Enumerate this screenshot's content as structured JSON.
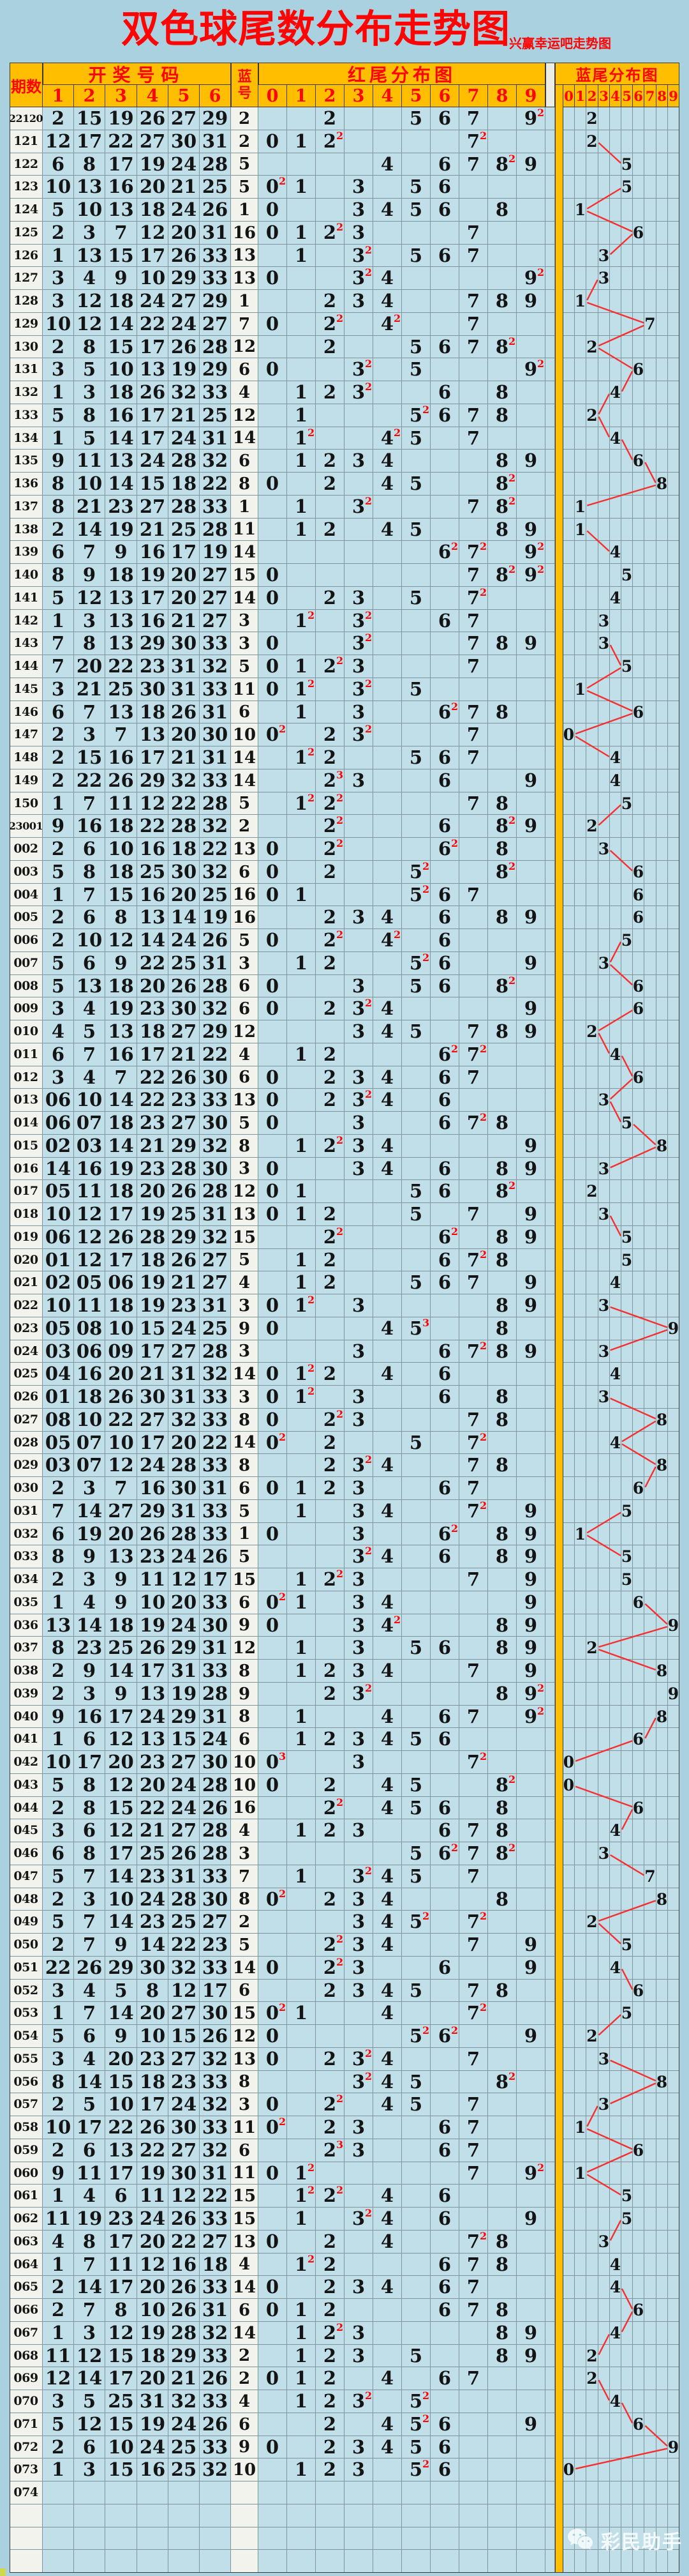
{
  "title": "双色球尾数分布走势图",
  "subtitle": "兴赢幸运吧走势图",
  "watermark": "彩民助手",
  "header": {
    "period": "期数",
    "numbers": "开奖号码",
    "number_cols": [
      "1",
      "2",
      "3",
      "4",
      "5",
      "6"
    ],
    "blue": "蓝号",
    "red_tail": "红尾分布图",
    "red_cols": [
      "0",
      "1",
      "2",
      "3",
      "4",
      "5",
      "6",
      "7",
      "8",
      "9"
    ],
    "blue_tail": "蓝尾分布图",
    "blue_cols": [
      "0",
      "1",
      "2",
      "3",
      "4",
      "5",
      "6",
      "7",
      "8",
      "9"
    ]
  },
  "colors": {
    "page_bg": "#a9d1df",
    "cell_blue": "#c0dfe9",
    "label_white": "#f3f3ed",
    "header_orange": "#ffbe00",
    "title_red": "#fe0404",
    "grid": "#7f949b",
    "trend_line_red": "#f53030",
    "digit_black": "#141414"
  },
  "chart_data": {
    "type": "table",
    "title": "双色球尾数分布走势图",
    "notes": "Red-tail cells show last digit of each of the 6 red numbers with red superscript = occurrence count; blue-tail column shows last digit of blue number; red zigzag line links consecutive blue tails when they differ by 2 or more.",
    "trailing_empty_rows": 3,
    "rows": [
      {
        "p": "22120",
        "n": [
          "2",
          "15",
          "19",
          "26",
          "27",
          "29"
        ],
        "b": "2"
      },
      {
        "p": "121",
        "n": [
          "12",
          "17",
          "22",
          "27",
          "30",
          "31"
        ],
        "b": "2"
      },
      {
        "p": "122",
        "n": [
          "6",
          "8",
          "17",
          "19",
          "24",
          "28"
        ],
        "b": "5"
      },
      {
        "p": "123",
        "n": [
          "10",
          "13",
          "16",
          "20",
          "21",
          "25"
        ],
        "b": "5"
      },
      {
        "p": "124",
        "n": [
          "5",
          "10",
          "13",
          "18",
          "24",
          "26"
        ],
        "b": "1"
      },
      {
        "p": "125",
        "n": [
          "2",
          "3",
          "7",
          "12",
          "20",
          "31"
        ],
        "b": "16"
      },
      {
        "p": "126",
        "n": [
          "1",
          "13",
          "15",
          "17",
          "26",
          "33"
        ],
        "b": "13"
      },
      {
        "p": "127",
        "n": [
          "3",
          "4",
          "9",
          "10",
          "29",
          "33"
        ],
        "b": "13"
      },
      {
        "p": "128",
        "n": [
          "3",
          "12",
          "18",
          "24",
          "27",
          "29"
        ],
        "b": "1"
      },
      {
        "p": "129",
        "n": [
          "10",
          "12",
          "14",
          "22",
          "24",
          "27"
        ],
        "b": "7"
      },
      {
        "p": "130",
        "n": [
          "2",
          "8",
          "15",
          "17",
          "26",
          "28"
        ],
        "b": "12"
      },
      {
        "p": "131",
        "n": [
          "3",
          "5",
          "10",
          "13",
          "19",
          "29"
        ],
        "b": "6"
      },
      {
        "p": "132",
        "n": [
          "1",
          "3",
          "18",
          "26",
          "32",
          "33"
        ],
        "b": "4"
      },
      {
        "p": "133",
        "n": [
          "5",
          "8",
          "16",
          "17",
          "21",
          "25"
        ],
        "b": "12"
      },
      {
        "p": "134",
        "n": [
          "1",
          "5",
          "14",
          "17",
          "24",
          "31"
        ],
        "b": "14"
      },
      {
        "p": "135",
        "n": [
          "9",
          "11",
          "13",
          "24",
          "28",
          "32"
        ],
        "b": "6"
      },
      {
        "p": "136",
        "n": [
          "8",
          "10",
          "14",
          "15",
          "18",
          "22"
        ],
        "b": "8"
      },
      {
        "p": "137",
        "n": [
          "8",
          "21",
          "23",
          "27",
          "28",
          "33"
        ],
        "b": "1"
      },
      {
        "p": "138",
        "n": [
          "2",
          "14",
          "19",
          "21",
          "25",
          "28"
        ],
        "b": "11"
      },
      {
        "p": "139",
        "n": [
          "6",
          "7",
          "9",
          "16",
          "17",
          "19"
        ],
        "b": "14"
      },
      {
        "p": "140",
        "n": [
          "8",
          "9",
          "18",
          "19",
          "20",
          "27"
        ],
        "b": "15"
      },
      {
        "p": "141",
        "n": [
          "5",
          "12",
          "13",
          "17",
          "20",
          "27"
        ],
        "b": "14"
      },
      {
        "p": "142",
        "n": [
          "1",
          "3",
          "13",
          "16",
          "21",
          "27"
        ],
        "b": "3"
      },
      {
        "p": "143",
        "n": [
          "7",
          "8",
          "13",
          "29",
          "30",
          "33"
        ],
        "b": "3"
      },
      {
        "p": "144",
        "n": [
          "7",
          "20",
          "22",
          "23",
          "31",
          "32"
        ],
        "b": "5"
      },
      {
        "p": "145",
        "n": [
          "3",
          "21",
          "25",
          "30",
          "31",
          "33"
        ],
        "b": "11"
      },
      {
        "p": "146",
        "n": [
          "6",
          "7",
          "13",
          "18",
          "26",
          "31"
        ],
        "b": "6"
      },
      {
        "p": "147",
        "n": [
          "2",
          "3",
          "7",
          "13",
          "20",
          "30"
        ],
        "b": "10"
      },
      {
        "p": "148",
        "n": [
          "2",
          "15",
          "16",
          "17",
          "21",
          "31"
        ],
        "b": "14"
      },
      {
        "p": "149",
        "n": [
          "2",
          "22",
          "26",
          "29",
          "32",
          "33"
        ],
        "b": "14"
      },
      {
        "p": "150",
        "n": [
          "1",
          "7",
          "11",
          "12",
          "22",
          "28"
        ],
        "b": "5"
      },
      {
        "p": "23001",
        "n": [
          "9",
          "16",
          "18",
          "22",
          "28",
          "32"
        ],
        "b": "2"
      },
      {
        "p": "002",
        "n": [
          "2",
          "6",
          "10",
          "16",
          "18",
          "22"
        ],
        "b": "13"
      },
      {
        "p": "003",
        "n": [
          "5",
          "8",
          "18",
          "25",
          "30",
          "32"
        ],
        "b": "6"
      },
      {
        "p": "004",
        "n": [
          "1",
          "7",
          "15",
          "16",
          "20",
          "25"
        ],
        "b": "16"
      },
      {
        "p": "005",
        "n": [
          "2",
          "6",
          "8",
          "13",
          "14",
          "19"
        ],
        "b": "16"
      },
      {
        "p": "006",
        "n": [
          "2",
          "10",
          "12",
          "14",
          "24",
          "26"
        ],
        "b": "5"
      },
      {
        "p": "007",
        "n": [
          "5",
          "6",
          "9",
          "22",
          "25",
          "31"
        ],
        "b": "3"
      },
      {
        "p": "008",
        "n": [
          "5",
          "13",
          "18",
          "20",
          "26",
          "28"
        ],
        "b": "6"
      },
      {
        "p": "009",
        "n": [
          "3",
          "4",
          "19",
          "23",
          "30",
          "32"
        ],
        "b": "6"
      },
      {
        "p": "010",
        "n": [
          "4",
          "5",
          "13",
          "18",
          "27",
          "29"
        ],
        "b": "12"
      },
      {
        "p": "011",
        "n": [
          "6",
          "7",
          "16",
          "17",
          "21",
          "22"
        ],
        "b": "4"
      },
      {
        "p": "012",
        "n": [
          "3",
          "4",
          "7",
          "22",
          "26",
          "30"
        ],
        "b": "6"
      },
      {
        "p": "013",
        "n": [
          "06",
          "10",
          "14",
          "22",
          "23",
          "33"
        ],
        "b": "13"
      },
      {
        "p": "014",
        "n": [
          "06",
          "07",
          "18",
          "23",
          "27",
          "30"
        ],
        "b": "5"
      },
      {
        "p": "015",
        "n": [
          "02",
          "03",
          "14",
          "21",
          "29",
          "32"
        ],
        "b": "8"
      },
      {
        "p": "016",
        "n": [
          "14",
          "16",
          "19",
          "23",
          "28",
          "30"
        ],
        "b": "3"
      },
      {
        "p": "017",
        "n": [
          "05",
          "11",
          "18",
          "20",
          "26",
          "28"
        ],
        "b": "12"
      },
      {
        "p": "018",
        "n": [
          "10",
          "12",
          "17",
          "19",
          "25",
          "31"
        ],
        "b": "13"
      },
      {
        "p": "019",
        "n": [
          "06",
          "12",
          "26",
          "28",
          "29",
          "32"
        ],
        "b": "15"
      },
      {
        "p": "020",
        "n": [
          "01",
          "12",
          "17",
          "18",
          "26",
          "27"
        ],
        "b": "5"
      },
      {
        "p": "021",
        "n": [
          "02",
          "05",
          "06",
          "19",
          "21",
          "27"
        ],
        "b": "4"
      },
      {
        "p": "022",
        "n": [
          "10",
          "11",
          "18",
          "19",
          "23",
          "31"
        ],
        "b": "3"
      },
      {
        "p": "023",
        "n": [
          "05",
          "08",
          "10",
          "15",
          "24",
          "25"
        ],
        "b": "9"
      },
      {
        "p": "024",
        "n": [
          "03",
          "06",
          "09",
          "17",
          "27",
          "28"
        ],
        "b": "3"
      },
      {
        "p": "025",
        "n": [
          "04",
          "16",
          "20",
          "21",
          "31",
          "32"
        ],
        "b": "14"
      },
      {
        "p": "026",
        "n": [
          "01",
          "18",
          "26",
          "30",
          "31",
          "33"
        ],
        "b": "3"
      },
      {
        "p": "027",
        "n": [
          "08",
          "10",
          "22",
          "27",
          "32",
          "33"
        ],
        "b": "8"
      },
      {
        "p": "028",
        "n": [
          "05",
          "07",
          "10",
          "17",
          "20",
          "22"
        ],
        "b": "14"
      },
      {
        "p": "029",
        "n": [
          "03",
          "07",
          "12",
          "24",
          "28",
          "33"
        ],
        "b": "8"
      },
      {
        "p": "030",
        "n": [
          "2",
          "3",
          "7",
          "16",
          "30",
          "31"
        ],
        "b": "6"
      },
      {
        "p": "031",
        "n": [
          "7",
          "14",
          "27",
          "29",
          "31",
          "33"
        ],
        "b": "5"
      },
      {
        "p": "032",
        "n": [
          "6",
          "19",
          "20",
          "26",
          "28",
          "33"
        ],
        "b": "1"
      },
      {
        "p": "033",
        "n": [
          "8",
          "9",
          "13",
          "23",
          "24",
          "26"
        ],
        "b": "5"
      },
      {
        "p": "034",
        "n": [
          "2",
          "3",
          "9",
          "11",
          "12",
          "17"
        ],
        "b": "15"
      },
      {
        "p": "035",
        "n": [
          "1",
          "4",
          "9",
          "10",
          "20",
          "33"
        ],
        "b": "6"
      },
      {
        "p": "036",
        "n": [
          "13",
          "14",
          "18",
          "19",
          "24",
          "30"
        ],
        "b": "9"
      },
      {
        "p": "037",
        "n": [
          "8",
          "23",
          "25",
          "26",
          "29",
          "31"
        ],
        "b": "12"
      },
      {
        "p": "038",
        "n": [
          "2",
          "9",
          "14",
          "17",
          "31",
          "33"
        ],
        "b": "8"
      },
      {
        "p": "039",
        "n": [
          "2",
          "3",
          "9",
          "13",
          "19",
          "28"
        ],
        "b": "9"
      },
      {
        "p": "040",
        "n": [
          "9",
          "16",
          "17",
          "24",
          "29",
          "31"
        ],
        "b": "8"
      },
      {
        "p": "041",
        "n": [
          "1",
          "6",
          "12",
          "13",
          "15",
          "24"
        ],
        "b": "6"
      },
      {
        "p": "042",
        "n": [
          "10",
          "17",
          "20",
          "23",
          "27",
          "30"
        ],
        "b": "10"
      },
      {
        "p": "043",
        "n": [
          "5",
          "8",
          "12",
          "20",
          "24",
          "28"
        ],
        "b": "10"
      },
      {
        "p": "044",
        "n": [
          "2",
          "8",
          "15",
          "22",
          "24",
          "26"
        ],
        "b": "16"
      },
      {
        "p": "045",
        "n": [
          "3",
          "6",
          "12",
          "21",
          "27",
          "28"
        ],
        "b": "4"
      },
      {
        "p": "046",
        "n": [
          "6",
          "8",
          "17",
          "25",
          "26",
          "28"
        ],
        "b": "3"
      },
      {
        "p": "047",
        "n": [
          "5",
          "7",
          "14",
          "23",
          "31",
          "33"
        ],
        "b": "7"
      },
      {
        "p": "048",
        "n": [
          "2",
          "3",
          "10",
          "24",
          "28",
          "30"
        ],
        "b": "8"
      },
      {
        "p": "049",
        "n": [
          "5",
          "7",
          "14",
          "23",
          "25",
          "27"
        ],
        "b": "2"
      },
      {
        "p": "050",
        "n": [
          "2",
          "7",
          "9",
          "14",
          "22",
          "23"
        ],
        "b": "5"
      },
      {
        "p": "051",
        "n": [
          "22",
          "26",
          "29",
          "30",
          "32",
          "33"
        ],
        "b": "14"
      },
      {
        "p": "052",
        "n": [
          "3",
          "4",
          "5",
          "8",
          "12",
          "17"
        ],
        "b": "6"
      },
      {
        "p": "053",
        "n": [
          "1",
          "7",
          "14",
          "20",
          "27",
          "30"
        ],
        "b": "15"
      },
      {
        "p": "054",
        "n": [
          "5",
          "6",
          "9",
          "10",
          "15",
          "26"
        ],
        "b": "12"
      },
      {
        "p": "055",
        "n": [
          "3",
          "4",
          "20",
          "23",
          "27",
          "32"
        ],
        "b": "13"
      },
      {
        "p": "056",
        "n": [
          "8",
          "14",
          "15",
          "18",
          "23",
          "33"
        ],
        "b": "8"
      },
      {
        "p": "057",
        "n": [
          "2",
          "5",
          "10",
          "17",
          "24",
          "32"
        ],
        "b": "3"
      },
      {
        "p": "058",
        "n": [
          "10",
          "17",
          "22",
          "26",
          "30",
          "33"
        ],
        "b": "11"
      },
      {
        "p": "059",
        "n": [
          "2",
          "6",
          "13",
          "22",
          "27",
          "32"
        ],
        "b": "6"
      },
      {
        "p": "060",
        "n": [
          "9",
          "11",
          "17",
          "19",
          "30",
          "31"
        ],
        "b": "11"
      },
      {
        "p": "061",
        "n": [
          "1",
          "4",
          "6",
          "11",
          "12",
          "22"
        ],
        "b": "15"
      },
      {
        "p": "062",
        "n": [
          "11",
          "19",
          "23",
          "24",
          "26",
          "33"
        ],
        "b": "15"
      },
      {
        "p": "063",
        "n": [
          "4",
          "8",
          "17",
          "20",
          "22",
          "27"
        ],
        "b": "13"
      },
      {
        "p": "064",
        "n": [
          "1",
          "7",
          "11",
          "12",
          "16",
          "18"
        ],
        "b": "4"
      },
      {
        "p": "065",
        "n": [
          "2",
          "14",
          "17",
          "20",
          "26",
          "33"
        ],
        "b": "14"
      },
      {
        "p": "066",
        "n": [
          "2",
          "7",
          "8",
          "10",
          "26",
          "31"
        ],
        "b": "6"
      },
      {
        "p": "067",
        "n": [
          "1",
          "3",
          "12",
          "19",
          "28",
          "32"
        ],
        "b": "14"
      },
      {
        "p": "068",
        "n": [
          "11",
          "12",
          "15",
          "18",
          "29",
          "33"
        ],
        "b": "2"
      },
      {
        "p": "069",
        "n": [
          "12",
          "14",
          "17",
          "20",
          "21",
          "26"
        ],
        "b": "2"
      },
      {
        "p": "070",
        "n": [
          "3",
          "5",
          "25",
          "31",
          "32",
          "33"
        ],
        "b": "4"
      },
      {
        "p": "071",
        "n": [
          "5",
          "12",
          "15",
          "19",
          "24",
          "26"
        ],
        "b": "6"
      },
      {
        "p": "072",
        "n": [
          "2",
          "6",
          "10",
          "24",
          "25",
          "33"
        ],
        "b": "9"
      },
      {
        "p": "073",
        "n": [
          "1",
          "3",
          "15",
          "16",
          "25",
          "32"
        ],
        "b": "10"
      },
      {
        "p": "074",
        "n": [],
        "b": ""
      }
    ]
  }
}
